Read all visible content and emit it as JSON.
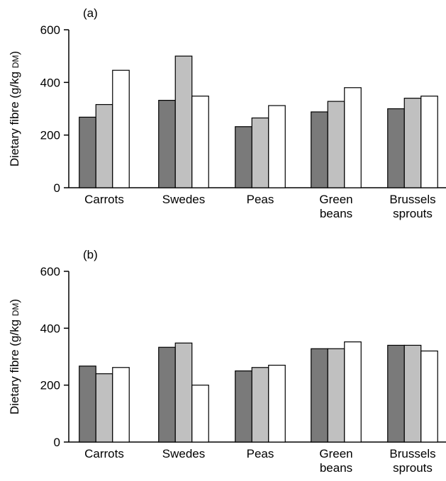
{
  "colors": {
    "series_fills": [
      "#7a7a7a",
      "#c0c0c0",
      "#ffffff"
    ],
    "stroke": "#000000"
  },
  "chart_data": [
    {
      "type": "bar",
      "panel_label": "(a)",
      "ylabel_main": "Dietary fibre (g/kg ",
      "ylabel_unit": "DM",
      "ylabel_close": ")",
      "ylim": [
        0,
        600
      ],
      "yticks": [
        "0",
        "200",
        "400",
        "600"
      ],
      "categories": [
        [
          "Carrots"
        ],
        [
          "Swedes"
        ],
        [
          "Peas"
        ],
        [
          "Green",
          "beans"
        ],
        [
          "Brussels",
          "sprouts"
        ]
      ],
      "series": [
        {
          "values": [
            268,
            332,
            232,
            288,
            300
          ]
        },
        {
          "values": [
            316,
            500,
            265,
            328,
            340
          ]
        },
        {
          "values": [
            446,
            348,
            312,
            380,
            348
          ]
        }
      ]
    },
    {
      "type": "bar",
      "panel_label": "(b)",
      "ylabel_main": "Dietary fibre (g/kg ",
      "ylabel_unit": "DM",
      "ylabel_close": ")",
      "ylim": [
        0,
        600
      ],
      "yticks": [
        "0",
        "200",
        "400",
        "600"
      ],
      "categories": [
        [
          "Carrots"
        ],
        [
          "Swedes"
        ],
        [
          "Peas"
        ],
        [
          "Green",
          "beans"
        ],
        [
          "Brussels",
          "sprouts"
        ]
      ],
      "series": [
        {
          "values": [
            267,
            333,
            250,
            328,
            340
          ]
        },
        {
          "values": [
            240,
            348,
            262,
            328,
            340
          ]
        },
        {
          "values": [
            262,
            200,
            270,
            352,
            320
          ]
        }
      ]
    }
  ]
}
